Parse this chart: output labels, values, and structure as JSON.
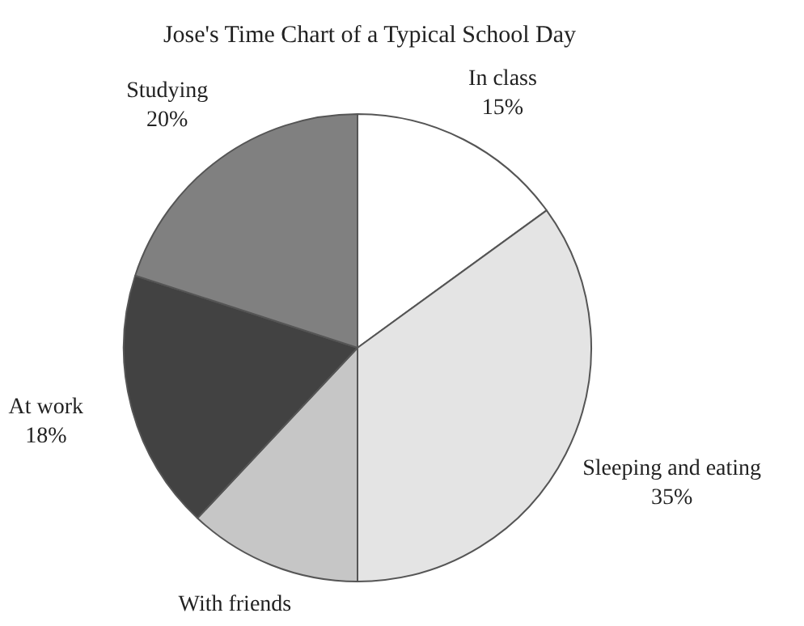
{
  "chart_data": {
    "type": "pie",
    "title": "Jose's Time Chart of a Typical School Day",
    "categories": [
      "In class",
      "Sleeping and eating",
      "With friends",
      "At work",
      "Studying"
    ],
    "values": [
      15,
      35,
      12,
      18,
      20
    ],
    "value_labels": [
      "15%",
      "35%",
      null,
      "18%",
      "20%"
    ],
    "colors": [
      "#ffffff",
      "#e4e4e4",
      "#c6c6c6",
      "#424242",
      "#808080"
    ],
    "legend": false
  }
}
